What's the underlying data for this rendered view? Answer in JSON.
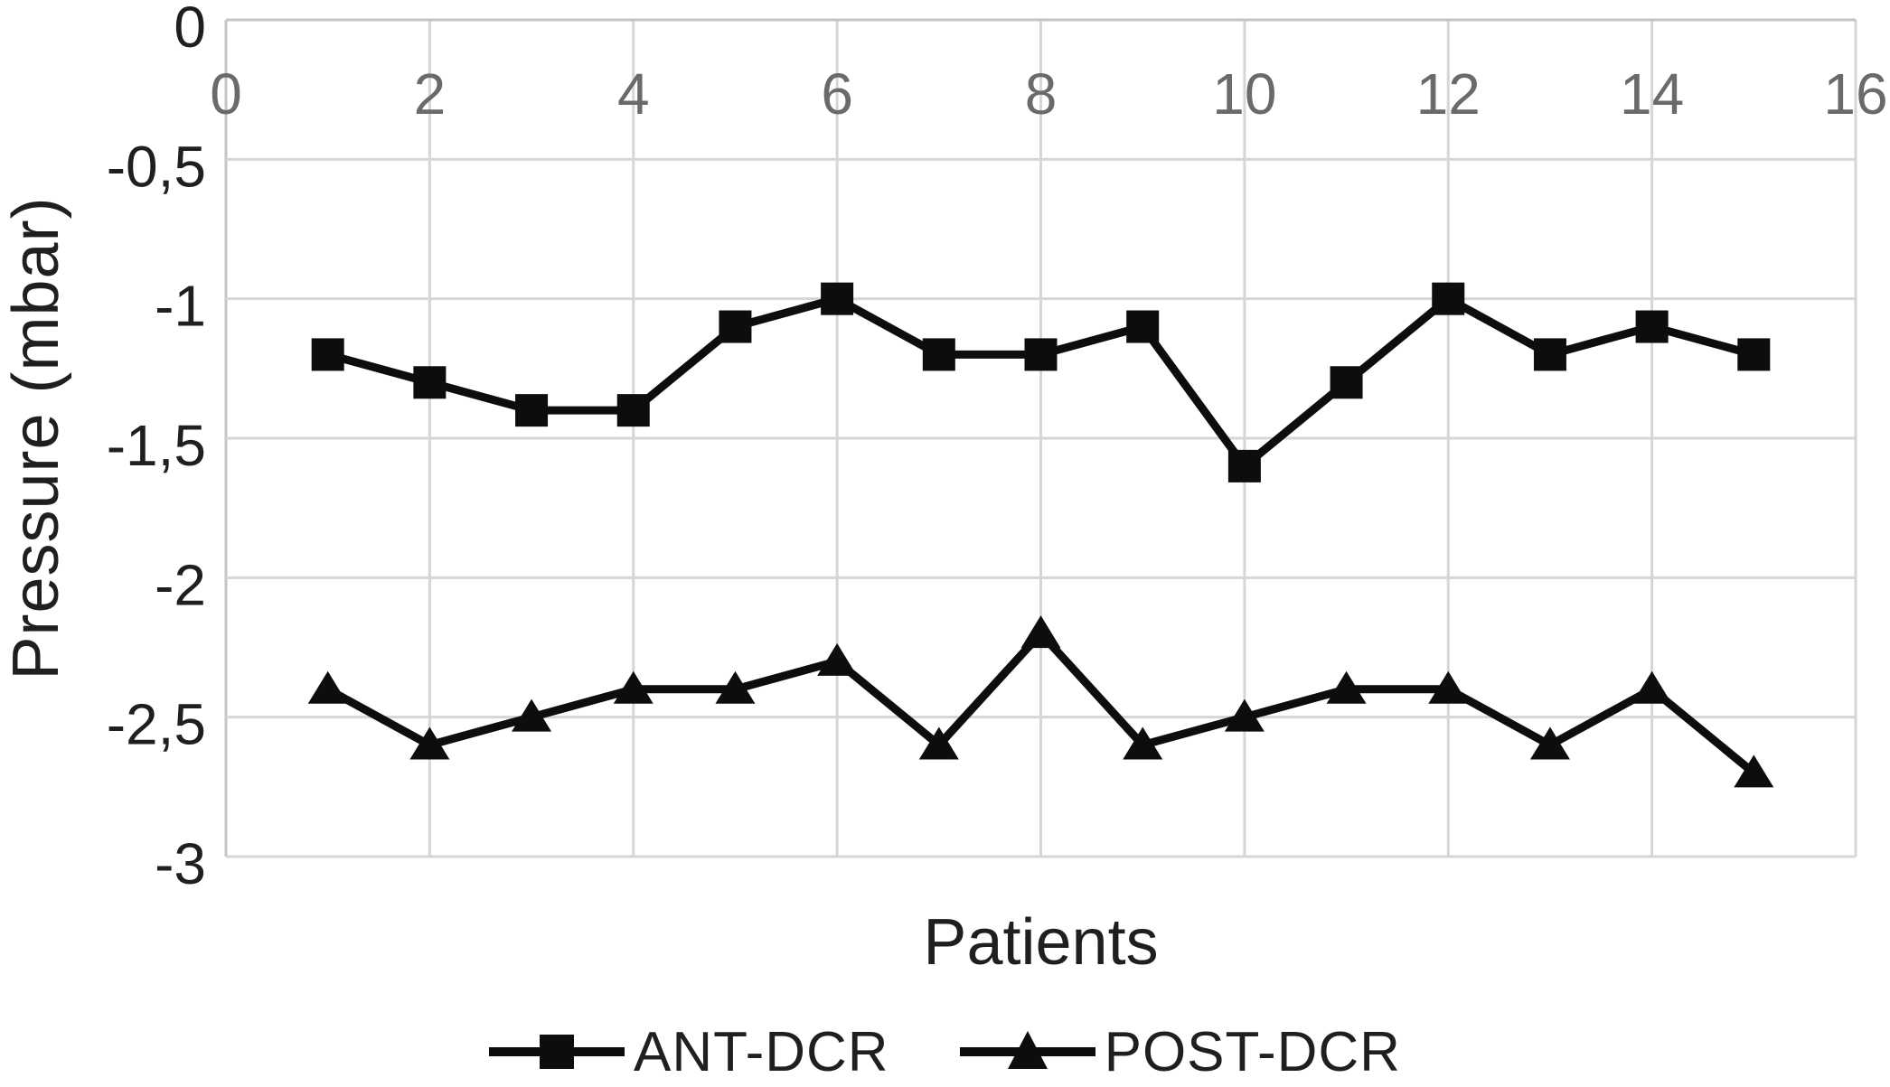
{
  "figure": {
    "y_axis_title": "Pressure (mbar)",
    "x_axis_title": "Patients"
  },
  "legend": [
    {
      "label": "ANT-DCR",
      "marker": "square"
    },
    {
      "label": "POST-DCR",
      "marker": "triangle"
    }
  ],
  "colors": {
    "series": "#0d0d0d",
    "grid": "#d6d6d6",
    "axis": "#c4c4c4",
    "x_tick_color": "#6a6a6a",
    "y_tick_color": "#1f1f1f"
  },
  "chart_data": {
    "type": "line",
    "title": "",
    "xlabel": "Patients",
    "ylabel": "Pressure (mbar)",
    "x": [
      1,
      2,
      3,
      4,
      5,
      6,
      7,
      8,
      9,
      10,
      11,
      12,
      13,
      14,
      15
    ],
    "series": [
      {
        "name": "ANT-DCR",
        "marker": "square",
        "values": [
          -1.2,
          -1.3,
          -1.4,
          -1.4,
          -1.1,
          -1.0,
          -1.2,
          -1.2,
          -1.1,
          -1.6,
          -1.3,
          -1.0,
          -1.2,
          -1.1,
          -1.2
        ]
      },
      {
        "name": "POST-DCR",
        "marker": "triangle",
        "values": [
          -2.4,
          -2.6,
          -2.5,
          -2.4,
          -2.4,
          -2.3,
          -2.6,
          -2.2,
          -2.6,
          -2.5,
          -2.4,
          -2.4,
          -2.6,
          -2.4,
          -2.7
        ]
      }
    ],
    "xlim": [
      0,
      16
    ],
    "ylim": [
      -3,
      0
    ],
    "x_ticks": [
      0,
      2,
      4,
      6,
      8,
      10,
      12,
      14,
      16
    ],
    "x_tick_labels": [
      "0",
      "2",
      "4",
      "6",
      "8",
      "10",
      "12",
      "14",
      "16"
    ],
    "y_ticks": [
      0,
      -0.5,
      -1,
      -1.5,
      -2,
      -2.5,
      -3
    ],
    "y_tick_labels": [
      "0",
      "-0,5",
      "-1",
      "-1,5",
      "-2",
      "-2,5",
      "-3"
    ],
    "grid": true,
    "legend_position": "bottom"
  }
}
